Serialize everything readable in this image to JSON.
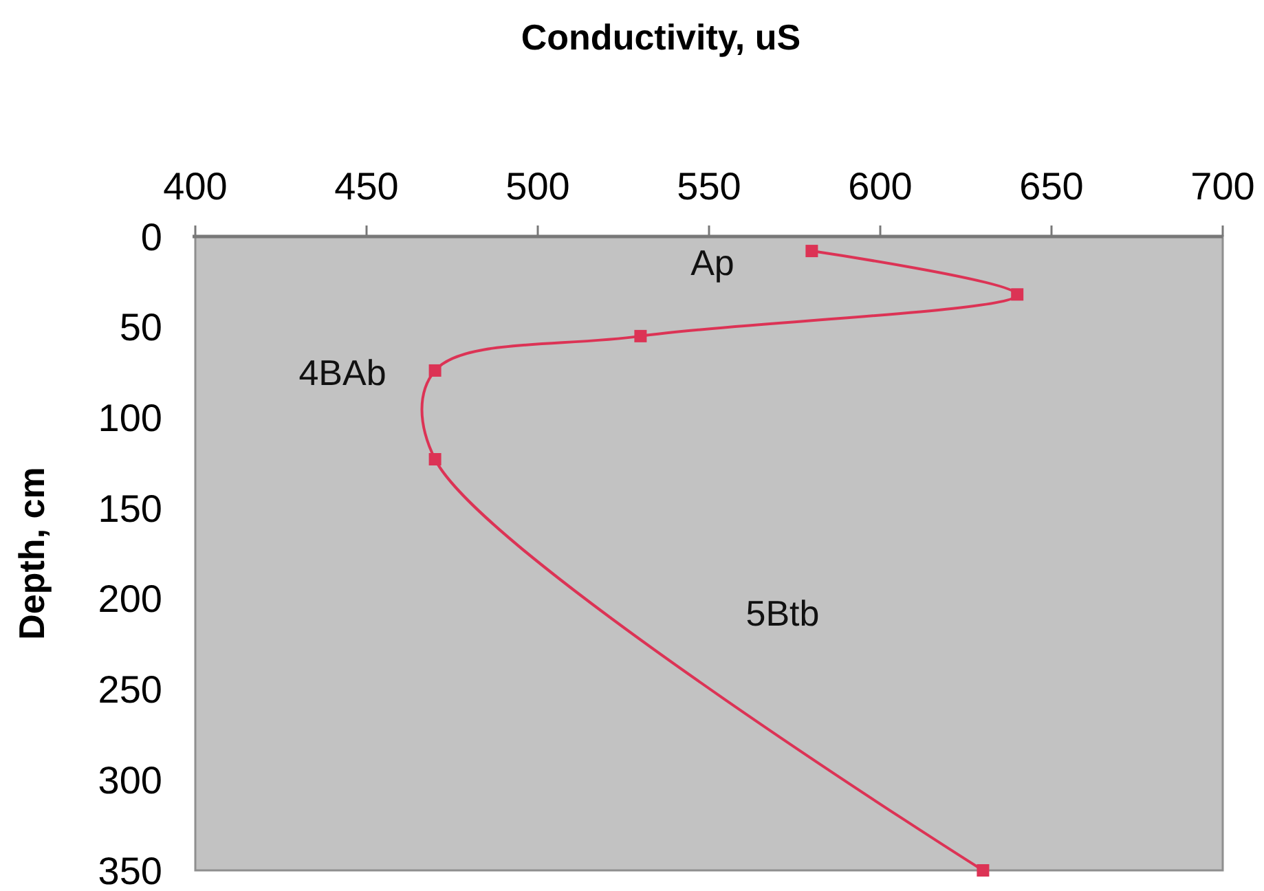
{
  "chart_data": {
    "type": "line",
    "xlabel": "Conductivity, uS",
    "ylabel": "Depth, cm",
    "x": [
      580,
      640,
      530,
      470,
      470,
      630
    ],
    "values": [
      8,
      32,
      55,
      74,
      123,
      350
    ],
    "color": "#dc3355",
    "marker": "square",
    "line_style": "solid",
    "xlim": [
      400,
      700
    ],
    "xticks": [
      400,
      450,
      500,
      550,
      600,
      650,
      700
    ],
    "ylim": [
      350,
      0
    ],
    "yticks": [
      0,
      50,
      100,
      150,
      200,
      250,
      300,
      350
    ],
    "annotations": [
      "Ap",
      "4BAb",
      "5Btb"
    ]
  }
}
